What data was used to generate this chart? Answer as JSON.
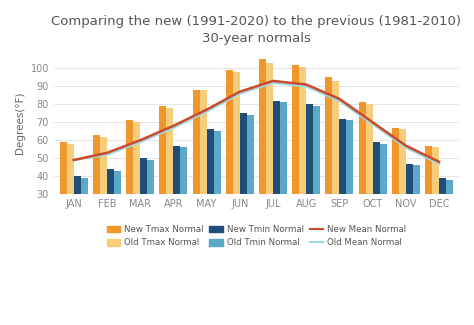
{
  "title": "Comparing the new (1991-2020) to the previous (1981-2010)\n30-year normals",
  "months": [
    "JAN",
    "FEB",
    "MAR",
    "APR",
    "MAY",
    "JUN",
    "JUL",
    "AUG",
    "SEP",
    "OCT",
    "NOV",
    "DEC"
  ],
  "new_tmax": [
    59,
    63,
    71,
    79,
    88,
    99,
    105,
    102,
    95,
    81,
    67,
    57
  ],
  "old_tmax": [
    58,
    62,
    70,
    78,
    88,
    98,
    103,
    101,
    93,
    80,
    66,
    56
  ],
  "new_tmin": [
    40,
    44,
    50,
    57,
    66,
    75,
    82,
    80,
    72,
    59,
    47,
    39
  ],
  "old_tmin": [
    39,
    43,
    49,
    56,
    65,
    74,
    81,
    79,
    71,
    58,
    46,
    38
  ],
  "new_mean": [
    49,
    53,
    60,
    68,
    77,
    87,
    93,
    91,
    83,
    70,
    57,
    48
  ],
  "old_mean": [
    49,
    52,
    59,
    67,
    76,
    86,
    92,
    90,
    82,
    69,
    56,
    47
  ],
  "bar_color_new_tmax": "#F0962A",
  "bar_color_old_tmax": "#F7CC7A",
  "bar_color_new_tmin": "#1F4E79",
  "bar_color_old_tmin": "#5BA8C9",
  "line_color_new_mean": "#CC4A2A",
  "line_color_old_mean": "#9DD9E8",
  "ylabel": "Degrees(°F)",
  "ylim": [
    30,
    110
  ],
  "yticks": [
    30,
    40,
    50,
    60,
    70,
    80,
    90,
    100
  ],
  "background_color": "#ffffff",
  "title_color": "#555555",
  "title_fontsize": 9.5,
  "legend_labels": [
    "New Tmax Normal",
    "Old Tmax Normal",
    "New Tmin Normal",
    "Old Tmin Normal",
    "New Mean Normal",
    "Old Mean Normal"
  ]
}
